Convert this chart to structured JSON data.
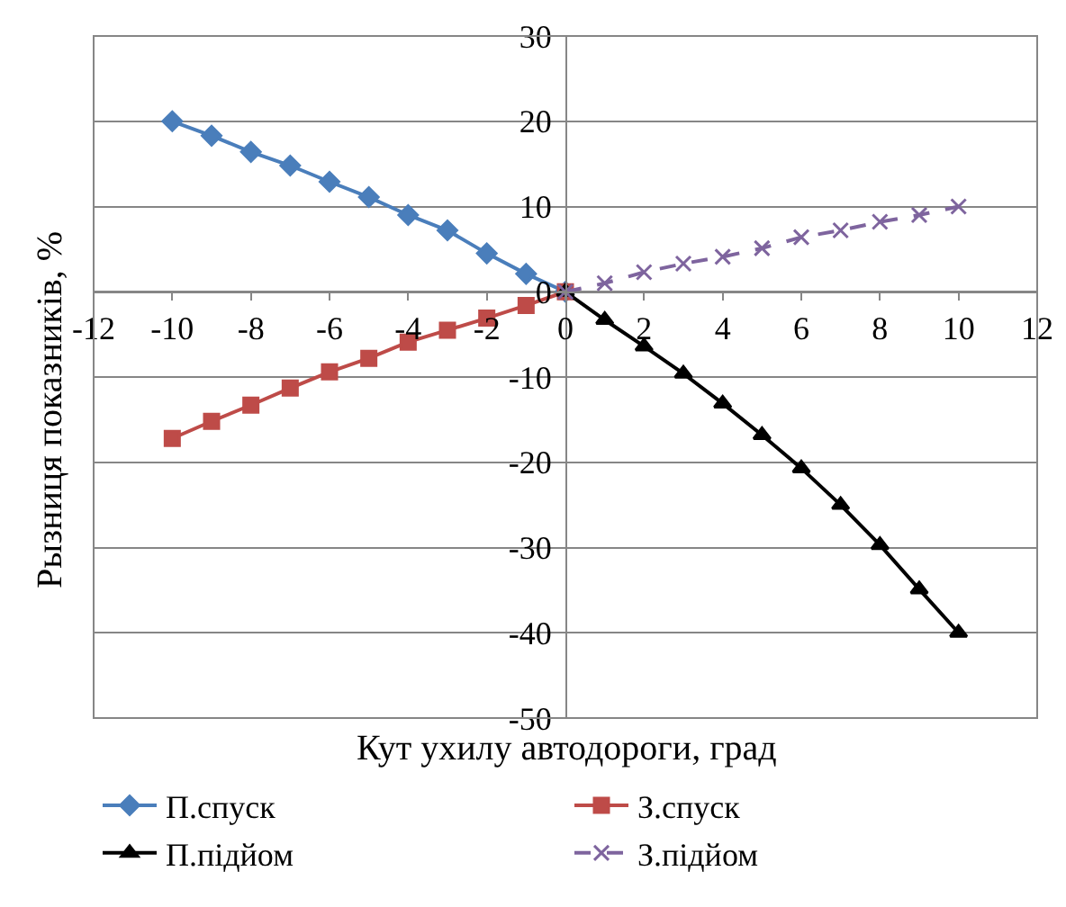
{
  "chart_data": {
    "type": "line",
    "xlabel": "Кут ухилу автодороги, град",
    "ylabel": "Рызниця показників, %",
    "xlim": [
      -12,
      12
    ],
    "xticks": [
      -12,
      -10,
      -8,
      -6,
      -4,
      -2,
      0,
      2,
      4,
      6,
      8,
      10,
      12
    ],
    "ylim": [
      -50,
      30
    ],
    "yticks": [
      -50,
      -40,
      -30,
      -20,
      -10,
      0,
      10,
      20,
      30
    ],
    "grid": "y",
    "legend": "bottom",
    "series": [
      {
        "name": "П.спуск",
        "color": "#4a7ebb",
        "marker": "diamond",
        "line_style": "solid",
        "x": [
          -10,
          -9,
          -8,
          -7,
          -6,
          -5,
          -4,
          -3,
          -2,
          -1,
          0
        ],
        "values": [
          20,
          18.3,
          16.4,
          14.8,
          12.9,
          11.1,
          9.0,
          7.2,
          4.5,
          2.1,
          0
        ]
      },
      {
        "name": "З.спуск",
        "color": "#be4b48",
        "marker": "square",
        "line_style": "solid",
        "x": [
          -10,
          -9,
          -8,
          -7,
          -6,
          -5,
          -4,
          -3,
          -2,
          -1,
          0
        ],
        "values": [
          -17.2,
          -15.2,
          -13.3,
          -11.3,
          -9.4,
          -7.8,
          -5.9,
          -4.5,
          -3.1,
          -1.6,
          0
        ]
      },
      {
        "name": "П.підйом",
        "color": "#000000",
        "marker": "triangle",
        "line_style": "solid",
        "x": [
          0,
          1,
          2,
          3,
          4,
          5,
          6,
          7,
          8,
          9,
          10
        ],
        "values": [
          0,
          -3.3,
          -6.4,
          -9.6,
          -13.1,
          -16.8,
          -20.7,
          -25,
          -29.7,
          -34.9,
          -40
        ]
      },
      {
        "name": "З.підйом",
        "color": "#7e649e",
        "marker": "cross",
        "line_style": "dashed",
        "x": [
          0,
          1,
          2,
          3,
          4,
          5,
          6,
          7,
          8,
          9,
          10
        ],
        "values": [
          0,
          1,
          2.3,
          3.3,
          4.1,
          5.1,
          6.4,
          7.2,
          8.2,
          9,
          10
        ]
      }
    ]
  }
}
